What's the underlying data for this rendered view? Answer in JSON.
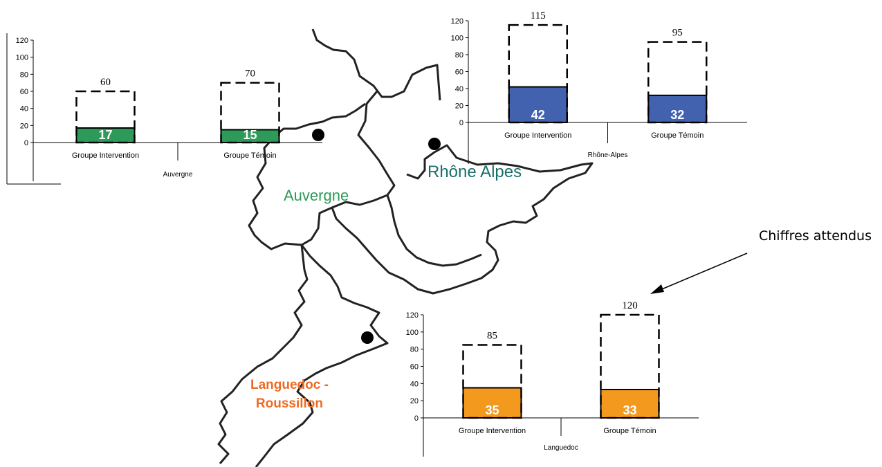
{
  "annotation": "Chiffres attendus",
  "map_labels": {
    "auvergne": "Auvergne",
    "rhone": "Rhône Alpes",
    "languedoc_line1": "Languedoc -",
    "languedoc_line2": "Roussillon"
  },
  "colors": {
    "auvergne": "#2e9a5a",
    "rhone": "#4262b0",
    "languedoc": "#f39a1e"
  },
  "chart_data": [
    {
      "type": "bar",
      "region": "Auvergne",
      "xlabel": "Auvergne",
      "categories": [
        "Groupe Intervention",
        "Groupe Témoin"
      ],
      "series": [
        {
          "name": "",
          "values": [
            17,
            15
          ]
        },
        {
          "name": "",
          "values": [
            60,
            70
          ]
        }
      ],
      "ylim": [
        0,
        120
      ],
      "yticks": [
        0,
        20,
        40,
        60,
        80,
        100,
        120
      ],
      "bar_color": "#2e9a5a"
    },
    {
      "type": "bar",
      "region": "Rhône-Alpes",
      "xlabel": "Rhône-Alpes",
      "categories": [
        "Groupe Intervention",
        "Groupe Témoin"
      ],
      "series": [
        {
          "name": "",
          "values": [
            42,
            32
          ]
        },
        {
          "name": "",
          "values": [
            115,
            95
          ]
        }
      ],
      "ylim": [
        0,
        120
      ],
      "yticks": [
        0,
        20,
        40,
        60,
        80,
        100,
        120
      ],
      "bar_color": "#4262b0"
    },
    {
      "type": "bar",
      "region": "Languedoc",
      "xlabel": "Languedoc",
      "categories": [
        "Groupe Intervention",
        "Groupe Témoin"
      ],
      "series": [
        {
          "name": "",
          "values": [
            35,
            33
          ]
        },
        {
          "name": "",
          "values": [
            85,
            120
          ]
        }
      ],
      "ylim": [
        0,
        120
      ],
      "yticks": [
        0,
        20,
        40,
        60,
        80,
        100,
        120
      ],
      "bar_color": "#f39a1e"
    }
  ]
}
